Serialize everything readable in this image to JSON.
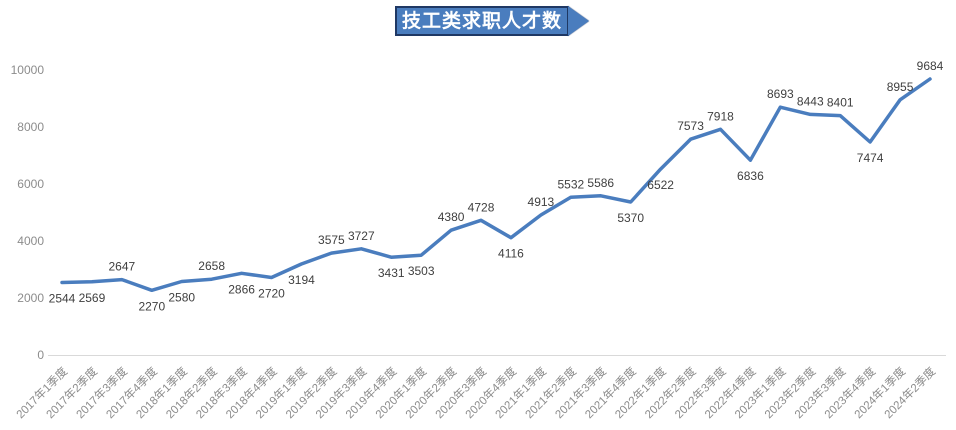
{
  "title_banner": {
    "text": "技工类求职人才数",
    "fill": "#4A7DBE",
    "border": "#1F3864",
    "text_color": "#FFFFFF"
  },
  "chart_data": {
    "type": "line",
    "title": "技工类求职人才数",
    "categories": [
      "2017年1季度",
      "2017年2季度",
      "2017年3季度",
      "2017年4季度",
      "2018年1季度",
      "2018年2季度",
      "2018年3季度",
      "2018年4季度",
      "2019年1季度",
      "2019年2季度",
      "2019年3季度",
      "2019年4季度",
      "2020年1季度",
      "2020年2季度",
      "2020年3季度",
      "2020年4季度",
      "2021年1季度",
      "2021年2季度",
      "2021年3季度",
      "2021年4季度",
      "2022年1季度",
      "2022年2季度",
      "2022年3季度",
      "2022年4季度",
      "2023年1季度",
      "2023年2季度",
      "2023年3季度",
      "2023年4季度",
      "2024年1季度",
      "2024年2季度"
    ],
    "values": [
      2544,
      2569,
      2647,
      2270,
      2580,
      2658,
      2866,
      2720,
      3194,
      3575,
      3727,
      3431,
      3503,
      4380,
      4728,
      4116,
      4913,
      5532,
      5586,
      5370,
      6522,
      7573,
      7918,
      6836,
      8693,
      8443,
      8401,
      7474,
      8955,
      9684
    ],
    "data_label_positions": [
      "below",
      "below",
      "above",
      "below",
      "below",
      "above",
      "below",
      "below",
      "below",
      "above",
      "above",
      "below",
      "below",
      "above",
      "above",
      "below",
      "above",
      "above",
      "above",
      "below",
      "below",
      "above",
      "above",
      "below",
      "above",
      "above",
      "above",
      "below",
      "above",
      "above"
    ],
    "y_ticks": [
      0,
      2000,
      4000,
      6000,
      8000,
      10000
    ],
    "ylim": [
      0,
      10000
    ],
    "grid": false,
    "legend_position": "none",
    "data_labels_shown": true,
    "line_color": "#4A7DBE",
    "axis_label_color": "#8C8C8C",
    "data_label_color": "#404040",
    "baseline_color": "#D9D9D9"
  }
}
